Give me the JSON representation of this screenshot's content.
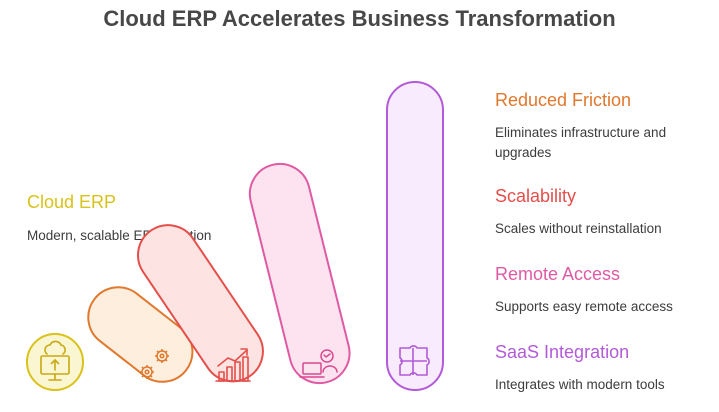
{
  "title": "Cloud ERP Accelerates Business Transformation",
  "left_item": {
    "heading": "Cloud ERP",
    "description": "Modern, scalable ERP solution",
    "color": "#d9c21a",
    "icon": "cloud-upload-monitor-icon"
  },
  "items": [
    {
      "heading": "Reduced Friction",
      "description": "Eliminates infrastructure and upgrades",
      "color": "#e0782d",
      "icon": "gears-icon"
    },
    {
      "heading": "Scalability",
      "description": "Scales without reinstallation",
      "color": "#e44f4a",
      "icon": "growth-chart-icon"
    },
    {
      "heading": "Remote Access",
      "description": "Supports easy remote access",
      "color": "#df5aa2",
      "icon": "remote-user-laptop-icon"
    },
    {
      "heading": "SaaS Integration",
      "description": "Integrates with modern tools",
      "color": "#b35ad8",
      "icon": "puzzle-icon"
    }
  ]
}
